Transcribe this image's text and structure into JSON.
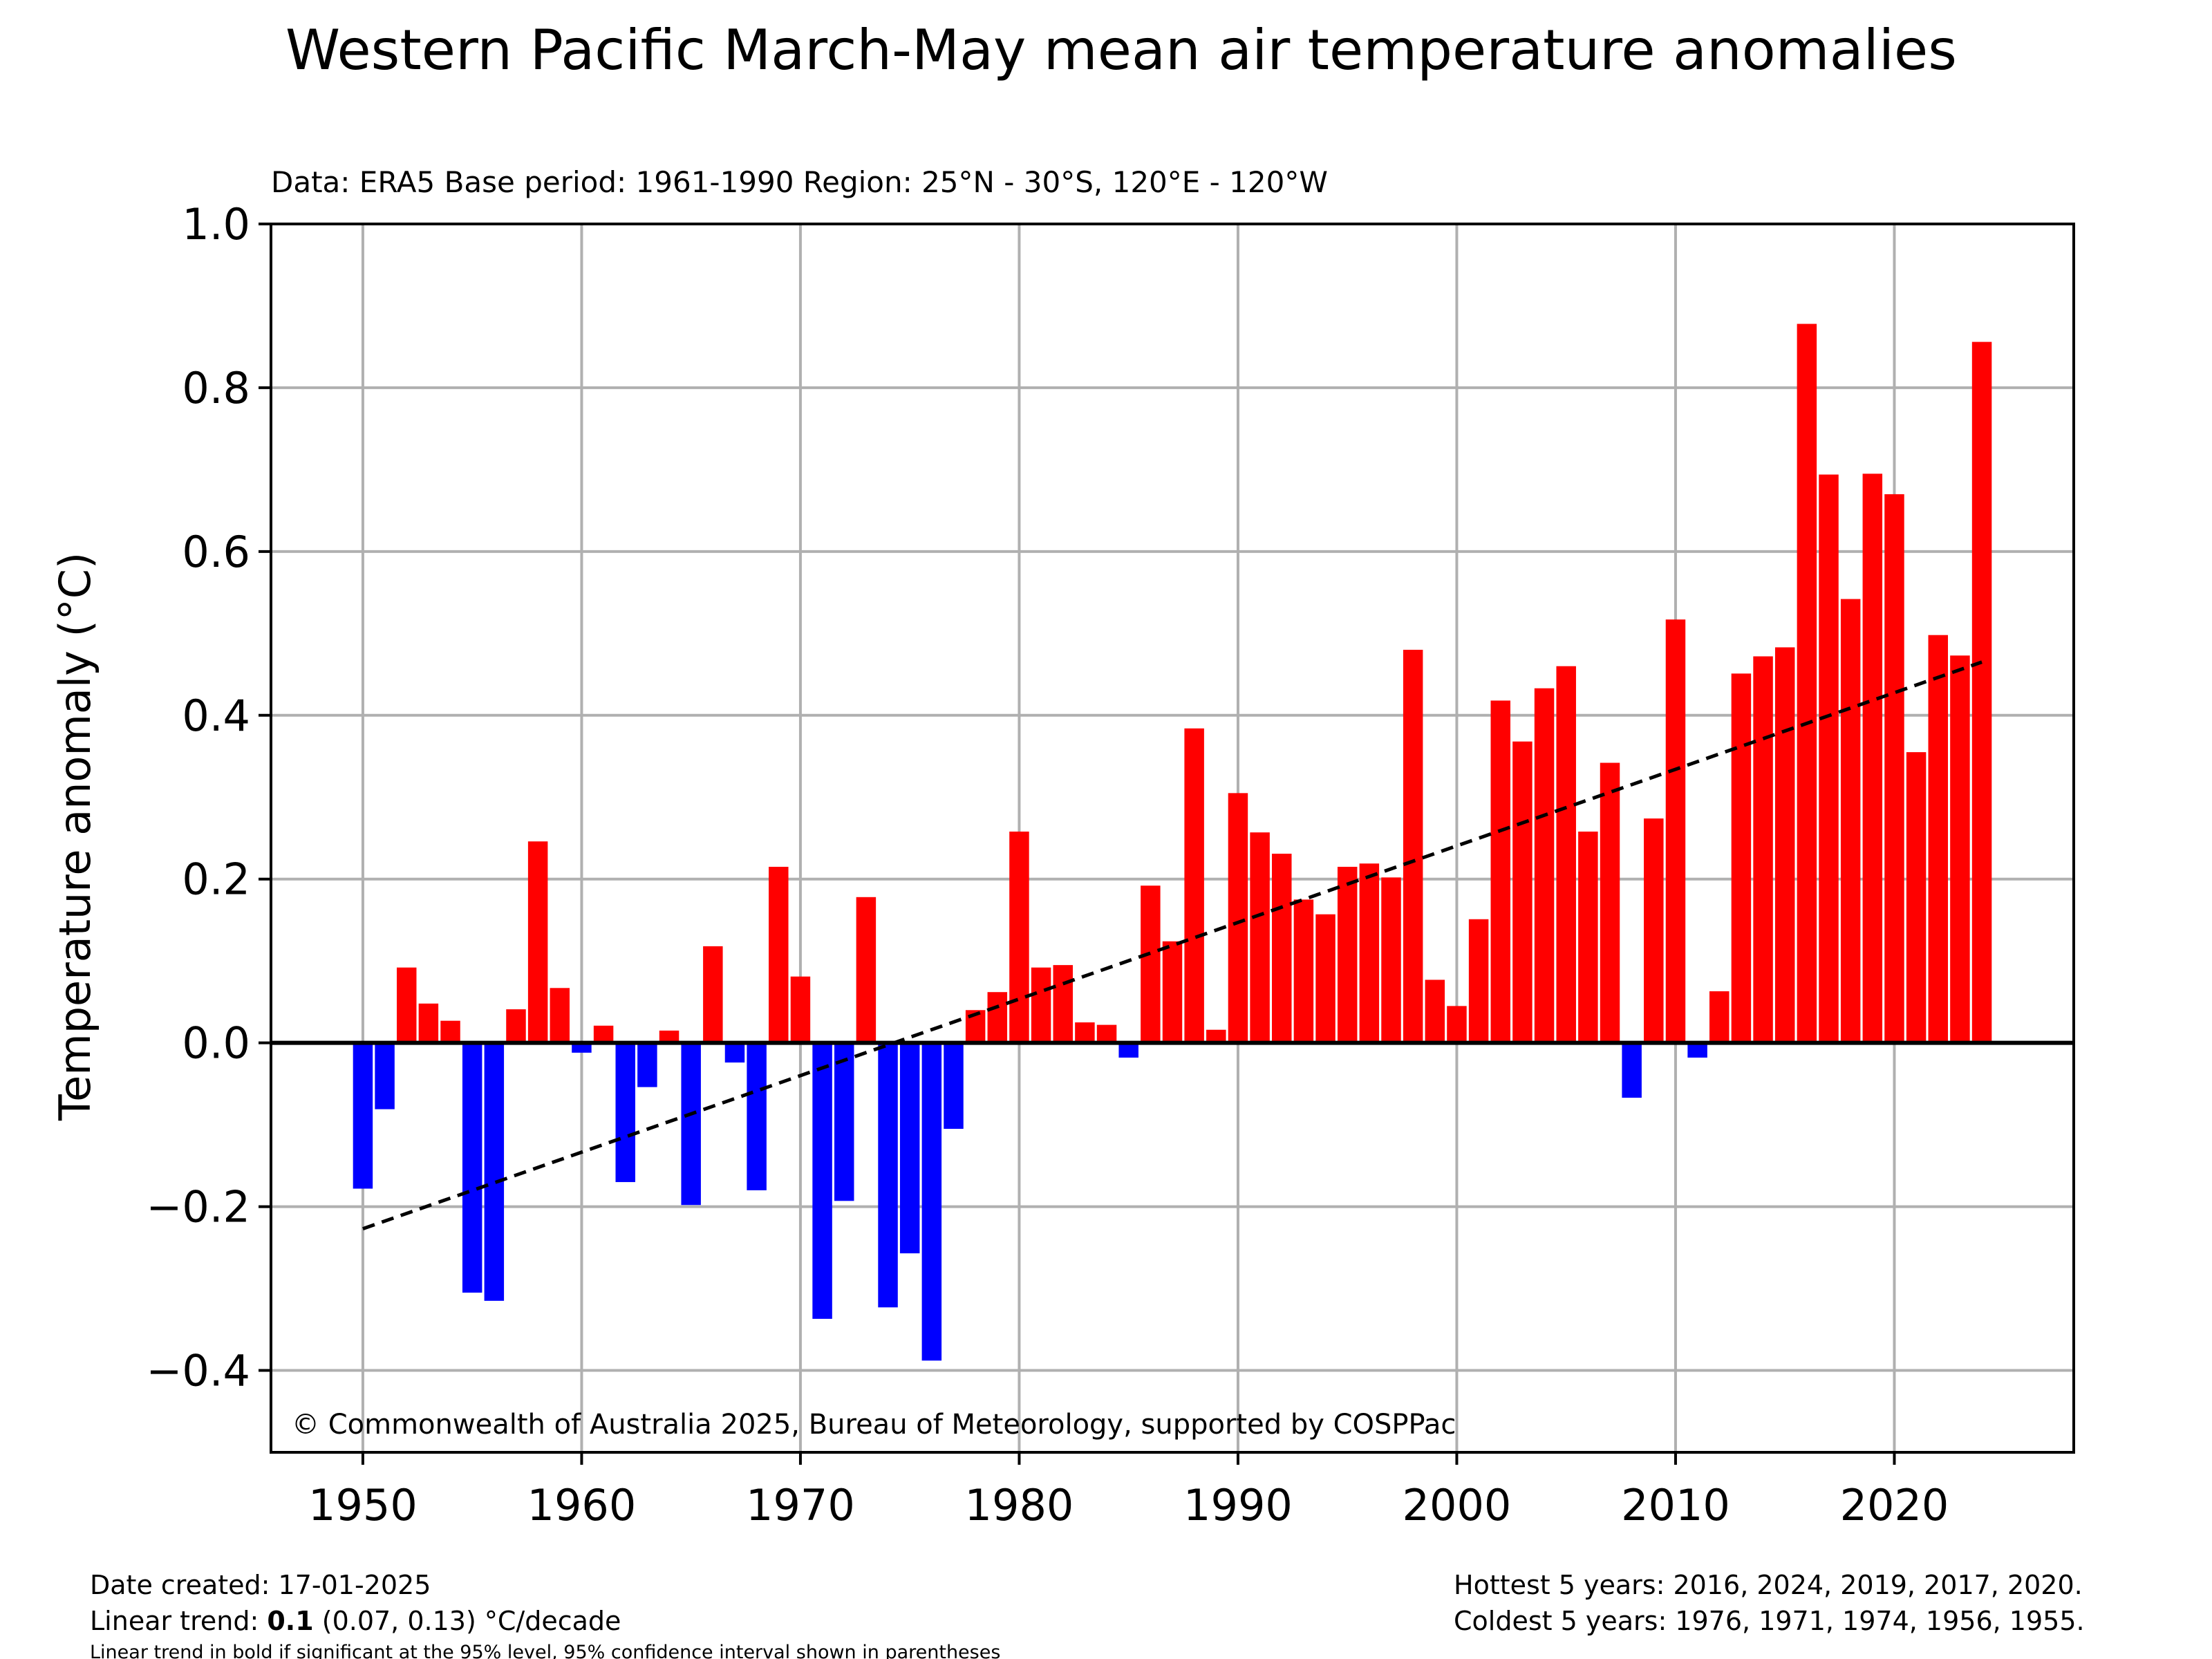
{
  "chart_data": {
    "type": "bar",
    "title": "Western Pacific March-May mean air temperature anomalies",
    "subtitle": "Data: ERA5  Base period: 1961-1990  Region: 25°N - 30°S, 120°E - 120°W",
    "ylabel": "Temperature anomaly (°C)",
    "xlabel": "",
    "ylim": [
      -0.5,
      1.0
    ],
    "xlim": [
      1945.8,
      2028.2
    ],
    "yticks": [
      -0.4,
      -0.2,
      0.0,
      0.2,
      0.4,
      0.6,
      0.8,
      1.0
    ],
    "ytick_labels": [
      "−0.4",
      "−0.2",
      "0.0",
      "0.2",
      "0.4",
      "0.6",
      "0.8",
      "1.0"
    ],
    "xticks": [
      1950,
      1960,
      1970,
      1980,
      1990,
      2000,
      2010,
      2020
    ],
    "xtick_labels": [
      "1950",
      "1960",
      "1970",
      "1980",
      "1990",
      "2000",
      "2010",
      "2020"
    ],
    "grid": true,
    "colors": {
      "positive": "#ff0000",
      "negative": "#0000ff",
      "trend": "#000000",
      "grid": "#b0b0b0"
    },
    "years": [
      1950,
      1951,
      1952,
      1953,
      1954,
      1955,
      1956,
      1957,
      1958,
      1959,
      1960,
      1961,
      1962,
      1963,
      1964,
      1965,
      1966,
      1967,
      1968,
      1969,
      1970,
      1971,
      1972,
      1973,
      1974,
      1975,
      1976,
      1977,
      1978,
      1979,
      1980,
      1981,
      1982,
      1983,
      1984,
      1985,
      1986,
      1987,
      1988,
      1989,
      1990,
      1991,
      1992,
      1993,
      1994,
      1995,
      1996,
      1997,
      1998,
      1999,
      2000,
      2001,
      2002,
      2003,
      2004,
      2005,
      2006,
      2007,
      2008,
      2009,
      2010,
      2011,
      2012,
      2013,
      2014,
      2015,
      2016,
      2017,
      2018,
      2019,
      2020,
      2021,
      2022,
      2023,
      2024
    ],
    "values": [
      -0.178,
      -0.081,
      0.092,
      0.048,
      0.027,
      -0.305,
      -0.315,
      0.041,
      0.246,
      0.067,
      -0.012,
      0.021,
      -0.17,
      -0.054,
      0.015,
      -0.198,
      0.118,
      -0.024,
      -0.18,
      0.215,
      0.081,
      -0.337,
      -0.193,
      0.178,
      -0.323,
      -0.257,
      -0.388,
      -0.105,
      0.04,
      0.062,
      0.258,
      0.092,
      0.095,
      0.025,
      0.022,
      -0.018,
      0.192,
      0.124,
      0.384,
      0.016,
      0.305,
      0.257,
      0.231,
      0.175,
      0.157,
      0.215,
      0.219,
      0.202,
      0.48,
      0.077,
      0.045,
      0.151,
      0.418,
      0.368,
      0.433,
      0.46,
      0.258,
      0.342,
      -0.067,
      0.274,
      0.517,
      -0.018,
      0.063,
      0.451,
      0.472,
      0.483,
      0.878,
      0.694,
      0.542,
      0.695,
      0.67,
      0.355,
      0.498,
      0.473,
      0.856
    ],
    "trend": {
      "x": [
        1950,
        2024
      ],
      "y": [
        -0.227,
        0.465
      ],
      "style": "dashed"
    },
    "annotation": "© Commonwealth of Australia 2025, Bureau of Meteorology, supported by COSPPac"
  },
  "footer": {
    "date_created": "Date created: 17-01-2025",
    "trend_prefix": "Linear trend: ",
    "trend_value": "0.1",
    "trend_suffix": " (0.07, 0.13) °C/decade",
    "trend_note": "Linear trend in bold if significant at the 95% level, 95% confidence interval shown in parentheses",
    "hottest": "Hottest 5 years: 2016, 2024, 2019, 2017, 2020.",
    "coldest": "Coldest 5 years: 1976, 1971, 1974, 1956, 1955."
  }
}
